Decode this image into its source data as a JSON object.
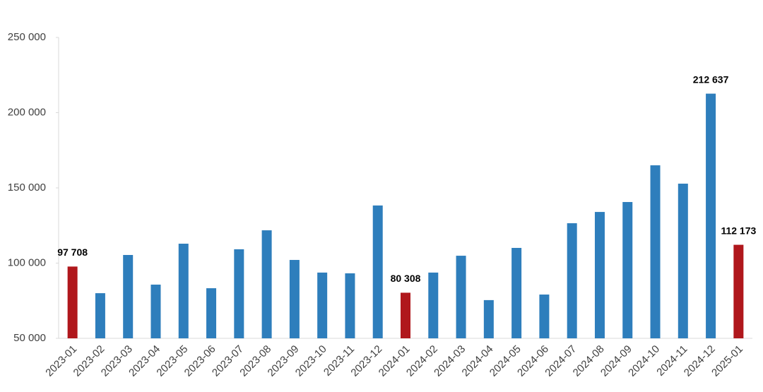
{
  "chart_data": {
    "type": "bar",
    "categories": [
      "2023-01",
      "2023-02",
      "2023-03",
      "2023-04",
      "2023-05",
      "2023-06",
      "2023-07",
      "2023-08",
      "2023-09",
      "2023-10",
      "2023-11",
      "2023-12",
      "2024-01",
      "2024-02",
      "2024-03",
      "2024-04",
      "2024-05",
      "2024-06",
      "2024-07",
      "2024-08",
      "2024-09",
      "2024-10",
      "2024-11",
      "2024-12",
      "2025-01"
    ],
    "values": [
      97708,
      80000,
      105400,
      85700,
      112900,
      83300,
      109200,
      121800,
      102100,
      93700,
      93200,
      138300,
      80308,
      93700,
      104900,
      75400,
      110100,
      79100,
      126500,
      134000,
      140600,
      165000,
      152800,
      212637,
      112173
    ],
    "value_labels": [
      "97 708",
      null,
      null,
      null,
      null,
      null,
      null,
      null,
      null,
      null,
      null,
      null,
      "80 308",
      null,
      null,
      null,
      null,
      null,
      null,
      null,
      null,
      null,
      null,
      "212 637",
      "112 173"
    ],
    "colors": [
      "#b0171c",
      "#2e7ebc",
      "#2e7ebc",
      "#2e7ebc",
      "#2e7ebc",
      "#2e7ebc",
      "#2e7ebc",
      "#2e7ebc",
      "#2e7ebc",
      "#2e7ebc",
      "#2e7ebc",
      "#2e7ebc",
      "#b0171c",
      "#2e7ebc",
      "#2e7ebc",
      "#2e7ebc",
      "#2e7ebc",
      "#2e7ebc",
      "#2e7ebc",
      "#2e7ebc",
      "#2e7ebc",
      "#2e7ebc",
      "#2e7ebc",
      "#2e7ebc",
      "#b0171c"
    ],
    "ylim": [
      50000,
      250000
    ],
    "yticks": [
      {
        "value": 50000,
        "label": "50 000"
      },
      {
        "value": 100000,
        "label": "100 000"
      },
      {
        "value": 150000,
        "label": "150 000"
      },
      {
        "value": 200000,
        "label": "200 000"
      },
      {
        "value": 250000,
        "label": "250 000"
      }
    ],
    "grid": false
  }
}
